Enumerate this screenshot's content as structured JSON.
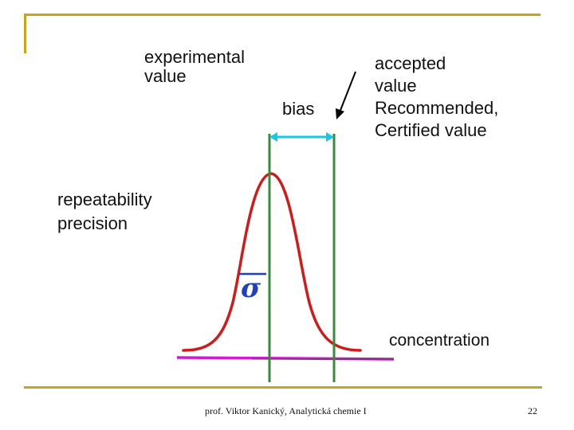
{
  "slide": {
    "labels": {
      "experimental_value": "experimental\nvalue",
      "bias": "bias",
      "accepted_value": "accepted\nvalue\nRecommended,\nCertified value",
      "repeatability_precision": "repeatability\nprecision",
      "sigma": "σ",
      "concentration": "concentration"
    },
    "footer": {
      "author": "prof. Viktor Kanický, Analytická chemie I",
      "page_number": "22"
    }
  },
  "colors": {
    "accent_gold": "#c8a416",
    "curve_red": "#d11a1a",
    "line_green": "#3a8a3a",
    "axis_magenta": "#d21ad2",
    "bias_arrow_cyan": "#16c8e6",
    "sigma_blue": "#1f3fbf"
  },
  "icons": {
    "pointer_arrow": "arrow-icon"
  }
}
